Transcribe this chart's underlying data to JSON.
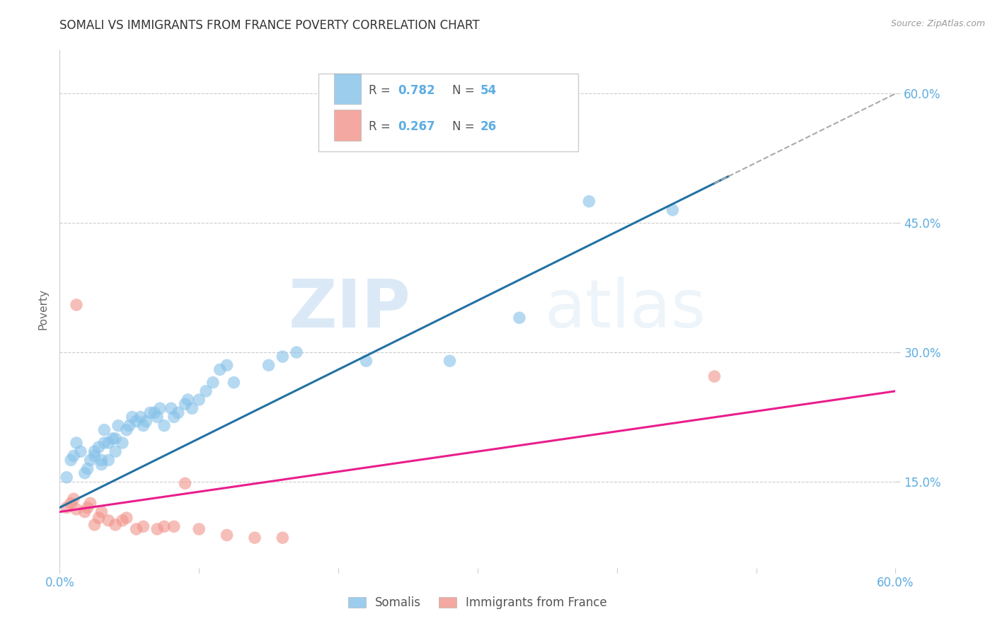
{
  "title": "SOMALI VS IMMIGRANTS FROM FRANCE POVERTY CORRELATION CHART",
  "source": "Source: ZipAtlas.com",
  "ylabel": "Poverty",
  "x_min": 0.0,
  "x_max": 0.6,
  "y_min": 0.05,
  "y_max": 0.65,
  "y_ticks": [
    0.15,
    0.3,
    0.45,
    0.6
  ],
  "y_tick_labels": [
    "15.0%",
    "30.0%",
    "45.0%",
    "60.0%"
  ],
  "x_ticks": [
    0.0,
    0.1,
    0.2,
    0.3,
    0.4,
    0.5,
    0.6
  ],
  "x_tick_labels": [
    "0.0%",
    "",
    "",
    "",
    "",
    "",
    "60.0%"
  ],
  "somali_color": "#85c1e9",
  "france_color": "#f1948a",
  "somali_label": "Somalis",
  "france_label": "Immigrants from France",
  "somali_R": "0.782",
  "somali_N": "54",
  "france_R": "0.267",
  "france_N": "26",
  "trend_somali_color": "#2471a3",
  "trend_france_color": "#e91e8c",
  "trend_dashed_color": "#aaaaaa",
  "watermark_zip": "ZIP",
  "watermark_atlas": "atlas",
  "somali_x": [
    0.005,
    0.008,
    0.01,
    0.012,
    0.015,
    0.018,
    0.02,
    0.022,
    0.025,
    0.025,
    0.028,
    0.03,
    0.03,
    0.032,
    0.032,
    0.035,
    0.035,
    0.038,
    0.04,
    0.04,
    0.042,
    0.045,
    0.048,
    0.05,
    0.052,
    0.055,
    0.058,
    0.06,
    0.062,
    0.065,
    0.068,
    0.07,
    0.072,
    0.075,
    0.08,
    0.082,
    0.085,
    0.09,
    0.092,
    0.095,
    0.1,
    0.105,
    0.11,
    0.115,
    0.12,
    0.125,
    0.15,
    0.16,
    0.17,
    0.22,
    0.28,
    0.33,
    0.38,
    0.44
  ],
  "somali_y": [
    0.155,
    0.175,
    0.18,
    0.195,
    0.185,
    0.16,
    0.165,
    0.175,
    0.18,
    0.185,
    0.19,
    0.17,
    0.175,
    0.195,
    0.21,
    0.175,
    0.195,
    0.2,
    0.185,
    0.2,
    0.215,
    0.195,
    0.21,
    0.215,
    0.225,
    0.22,
    0.225,
    0.215,
    0.22,
    0.23,
    0.23,
    0.225,
    0.235,
    0.215,
    0.235,
    0.225,
    0.23,
    0.24,
    0.245,
    0.235,
    0.245,
    0.255,
    0.265,
    0.28,
    0.285,
    0.265,
    0.285,
    0.295,
    0.3,
    0.29,
    0.29,
    0.34,
    0.475,
    0.465
  ],
  "france_x": [
    0.005,
    0.008,
    0.01,
    0.012,
    0.012,
    0.018,
    0.02,
    0.022,
    0.025,
    0.028,
    0.03,
    0.035,
    0.04,
    0.045,
    0.048,
    0.055,
    0.06,
    0.07,
    0.075,
    0.082,
    0.09,
    0.1,
    0.12,
    0.14,
    0.16,
    0.47
  ],
  "france_y": [
    0.12,
    0.125,
    0.13,
    0.118,
    0.355,
    0.115,
    0.12,
    0.125,
    0.1,
    0.108,
    0.115,
    0.105,
    0.1,
    0.105,
    0.108,
    0.095,
    0.098,
    0.095,
    0.098,
    0.098,
    0.148,
    0.095,
    0.088,
    0.085,
    0.085,
    0.272
  ]
}
